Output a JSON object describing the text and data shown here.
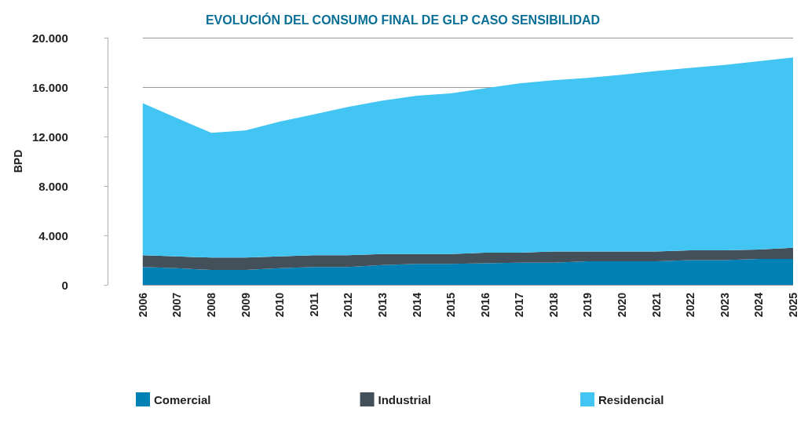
{
  "chart_data": {
    "type": "area",
    "stacked": true,
    "title": "EVOLUCIÓN DEL CONSUMO FINAL DE GLP CASO SENSIBILIDAD",
    "ylabel": "BPD",
    "categories": [
      "2006",
      "2007",
      "2008",
      "2009",
      "2010",
      "2011",
      "2012",
      "2013",
      "2014",
      "2015",
      "2016",
      "2017",
      "2018",
      "2019",
      "2020",
      "2021",
      "2022",
      "2023",
      "2024",
      "2025"
    ],
    "series": [
      {
        "name": "Comercial",
        "color": "#0081b5",
        "values": [
          1450,
          1350,
          1200,
          1200,
          1350,
          1450,
          1450,
          1600,
          1700,
          1700,
          1750,
          1800,
          1800,
          1900,
          1900,
          1900,
          2000,
          2000,
          2100,
          2100
        ]
      },
      {
        "name": "Industrial",
        "color": "#434f59",
        "values": [
          950,
          950,
          1000,
          1000,
          950,
          950,
          950,
          900,
          800,
          800,
          850,
          800,
          900,
          800,
          800,
          800,
          800,
          800,
          750,
          900
        ]
      },
      {
        "name": "Residencial",
        "color": "#42c5f2",
        "values": [
          12300,
          11200,
          10100,
          10300,
          10900,
          11400,
          12000,
          12400,
          12800,
          13000,
          13300,
          13700,
          13850,
          14050,
          14300,
          14600,
          14750,
          15000,
          15250,
          15400
        ]
      }
    ],
    "ylim": [
      0,
      20000
    ],
    "yticks": [
      {
        "value": 0,
        "label": "0"
      },
      {
        "value": 4000,
        "label": "4.000"
      },
      {
        "value": 8000,
        "label": "8.000"
      },
      {
        "value": 12000,
        "label": "12.000"
      },
      {
        "value": 16000,
        "label": "16.000"
      },
      {
        "value": 20000,
        "label": "20.000"
      }
    ],
    "grid": "y",
    "legend": "bottom"
  }
}
